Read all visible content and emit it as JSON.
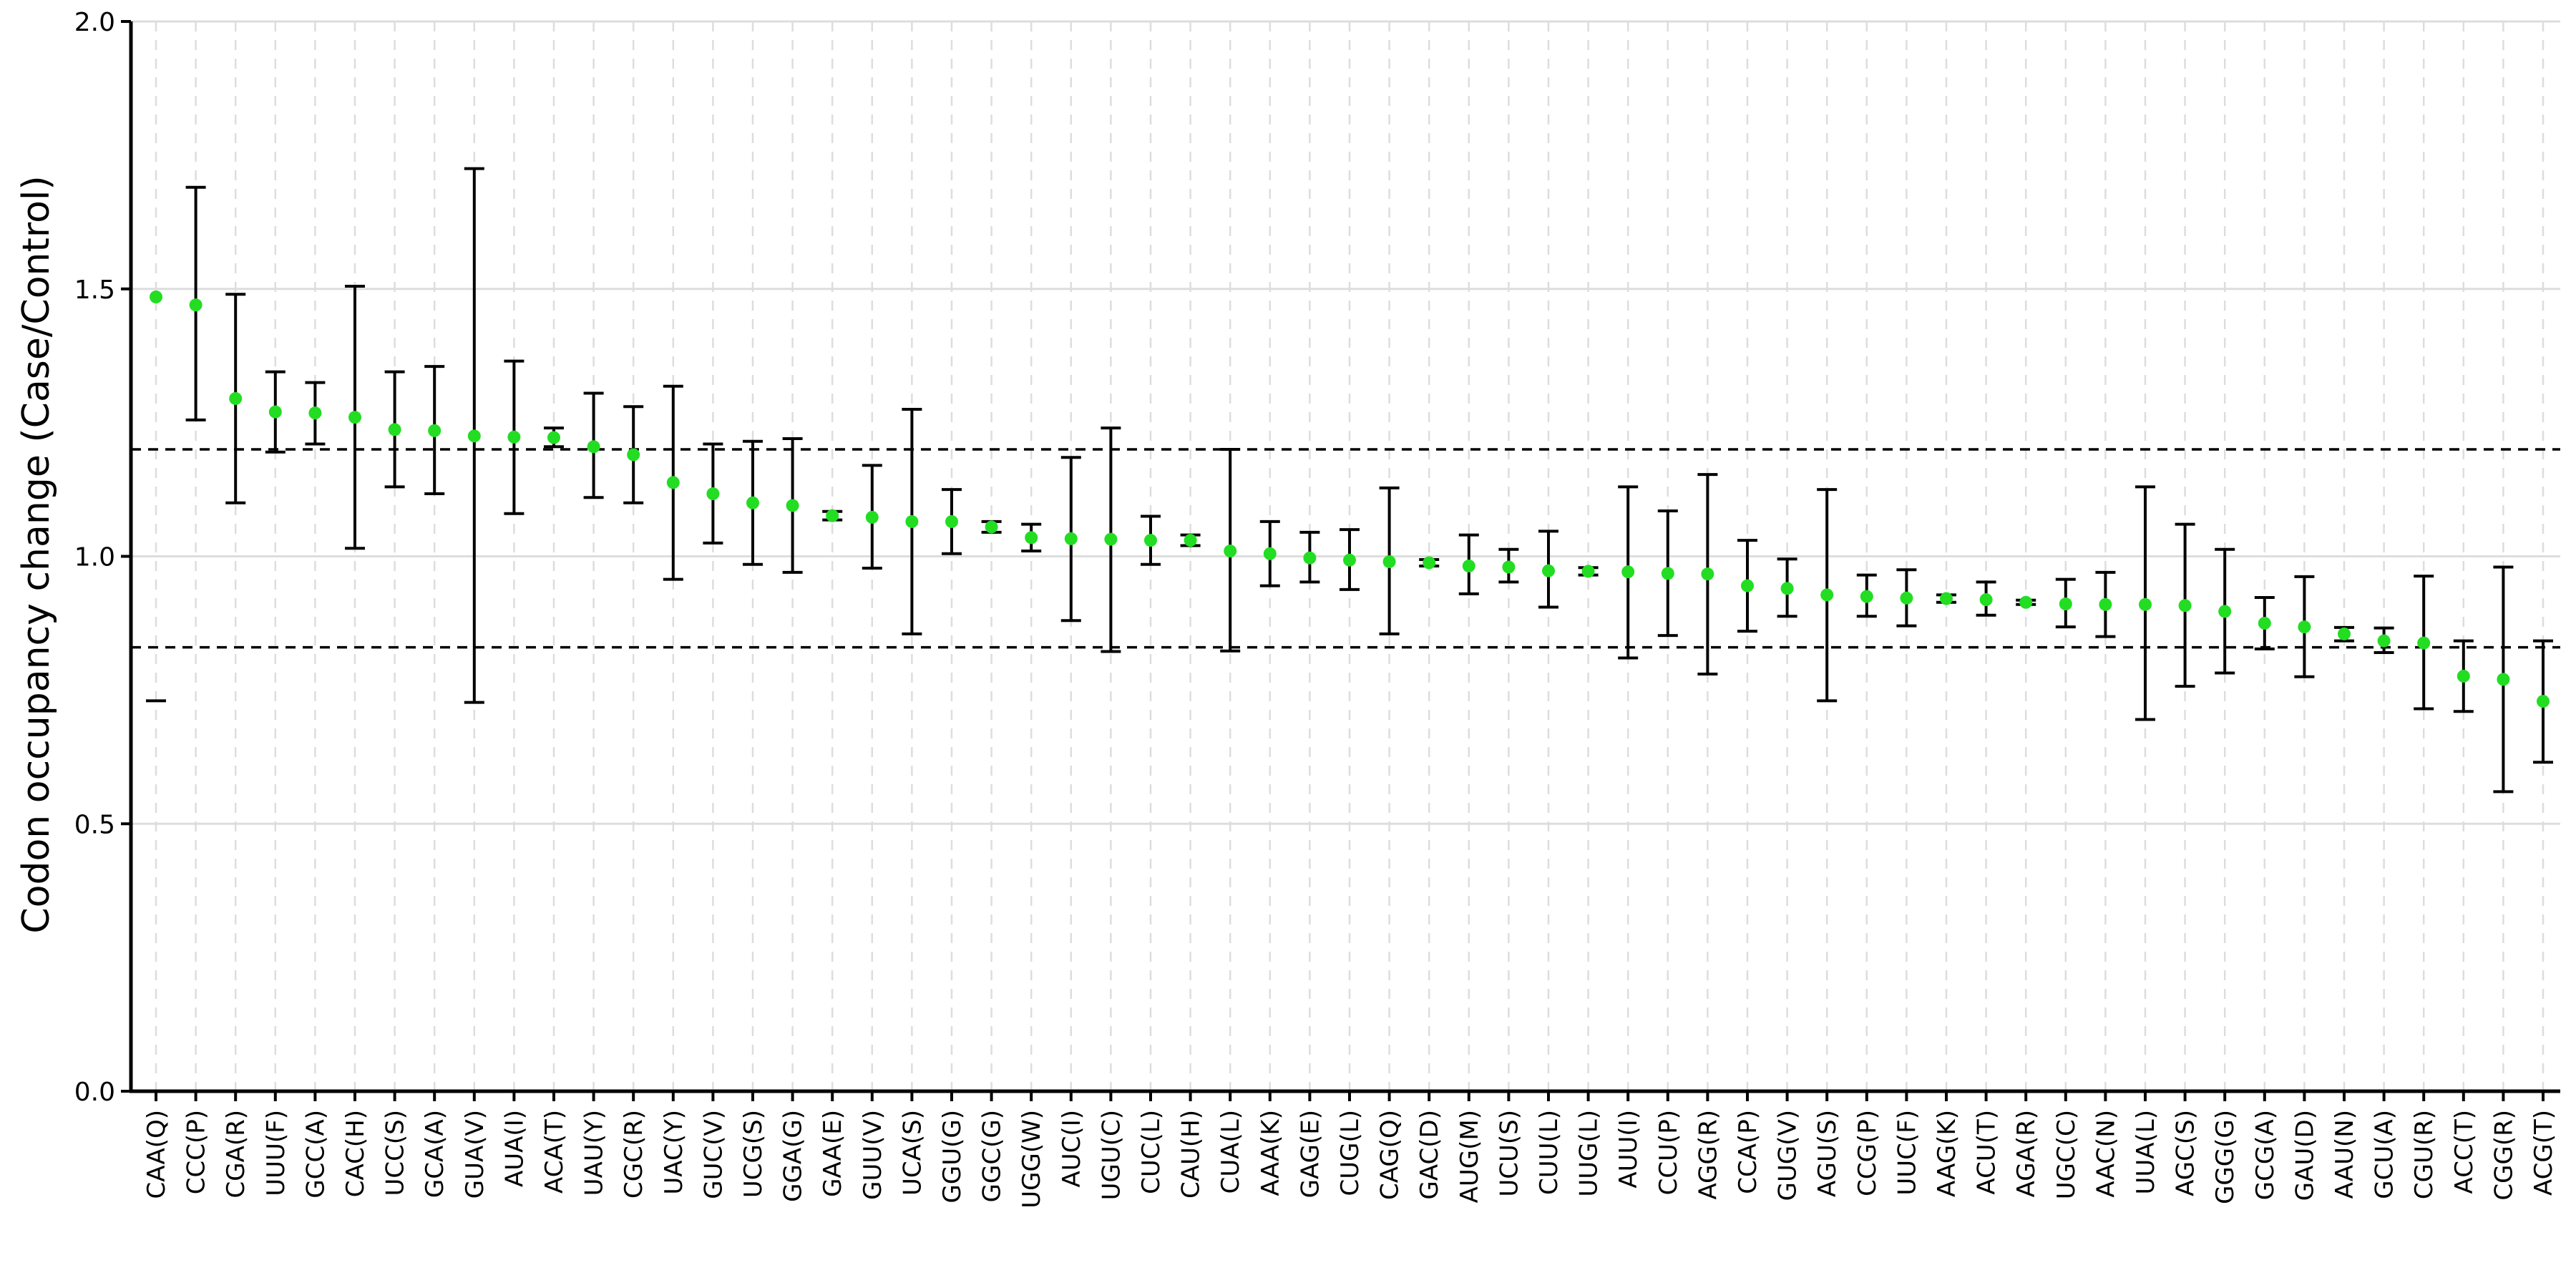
{
  "chart_data": {
    "type": "scatter",
    "title": "",
    "xlabel": "",
    "ylabel": "Codon occupancy change (Case/Control)",
    "ylim": [
      0.0,
      2.0
    ],
    "yticks": [
      "0.0",
      "0.5",
      "1.0",
      "1.5",
      "2.0"
    ],
    "grid": true,
    "legend": "none",
    "threshold_lines": [
      1.2,
      0.83
    ],
    "colors": {
      "point": "#22dd22",
      "errorbar": "#000000",
      "grid": "#dddddd",
      "threshold": "#000000"
    },
    "categories": [
      "CAA(Q)",
      "CCC(P)",
      "CGA(R)",
      "UUU(F)",
      "GCC(A)",
      "CAC(H)",
      "UCC(S)",
      "GCA(A)",
      "GUA(V)",
      "AUA(I)",
      "ACA(T)",
      "UAU(Y)",
      "CGC(R)",
      "UAC(Y)",
      "GUC(V)",
      "UCG(S)",
      "GGA(G)",
      "GAA(E)",
      "GUU(V)",
      "UCA(S)",
      "GGU(G)",
      "GGC(G)",
      "UGG(W)",
      "AUC(I)",
      "UGU(C)",
      "CUC(L)",
      "CAU(H)",
      "CUA(L)",
      "AAA(K)",
      "GAG(E)",
      "CUG(L)",
      "CAG(Q)",
      "GAC(D)",
      "AUG(M)",
      "UCU(S)",
      "CUU(L)",
      "UUG(L)",
      "AUU(I)",
      "CCU(P)",
      "AGG(R)",
      "CCA(P)",
      "GUG(V)",
      "AGU(S)",
      "CCG(P)",
      "UUC(F)",
      "AAG(K)",
      "ACU(T)",
      "AGA(R)",
      "UGC(C)",
      "AAC(N)",
      "UUA(L)",
      "AGC(S)",
      "GGG(G)",
      "GCG(A)",
      "GAU(D)",
      "AAU(N)",
      "GCU(A)",
      "CGU(R)",
      "ACC(T)",
      "CGG(R)",
      "ACG(T)"
    ],
    "values": [
      1.485,
      1.47,
      1.295,
      1.27,
      1.268,
      1.26,
      1.237,
      1.235,
      1.225,
      1.223,
      1.222,
      1.205,
      1.19,
      1.138,
      1.117,
      1.1,
      1.095,
      1.076,
      1.073,
      1.065,
      1.065,
      1.055,
      1.035,
      1.033,
      1.032,
      1.03,
      1.03,
      1.01,
      1.005,
      0.997,
      0.993,
      0.99,
      0.988,
      0.982,
      0.98,
      0.973,
      0.972,
      0.971,
      0.968,
      0.967,
      0.945,
      0.94,
      0.928,
      0.925,
      0.922,
      0.921,
      0.919,
      0.914,
      0.911,
      0.91,
      0.91,
      0.908,
      0.897,
      0.875,
      0.868,
      0.855,
      0.842,
      0.838,
      0.776,
      0.77,
      0.729
    ],
    "errors_lower": [
      null,
      1.255,
      1.1,
      1.195,
      1.21,
      1.015,
      1.13,
      1.117,
      0.727,
      1.08,
      1.205,
      1.11,
      1.1,
      0.957,
      1.025,
      0.985,
      0.97,
      1.068,
      0.978,
      0.855,
      1.005,
      1.045,
      1.01,
      0.88,
      0.822,
      0.985,
      1.02,
      0.823,
      0.945,
      0.952,
      0.938,
      0.855,
      0.982,
      0.93,
      0.952,
      0.905,
      0.965,
      0.81,
      0.852,
      0.78,
      0.86,
      0.888,
      0.73,
      0.888,
      0.87,
      0.914,
      0.89,
      0.91,
      0.868,
      0.85,
      0.695,
      0.757,
      0.782,
      0.827,
      0.775,
      0.842,
      0.82,
      0.715,
      0.71,
      0.56,
      0.615
    ],
    "errors_upper": [
      null,
      1.69,
      1.49,
      1.345,
      1.325,
      1.505,
      1.345,
      1.355,
      1.725,
      1.365,
      1.24,
      1.305,
      1.28,
      1.318,
      1.21,
      1.215,
      1.22,
      1.084,
      1.17,
      1.275,
      1.125,
      1.065,
      1.06,
      1.185,
      1.24,
      1.075,
      1.04,
      1.2,
      1.065,
      1.045,
      1.05,
      1.128,
      0.994,
      1.04,
      1.013,
      1.047,
      0.979,
      1.13,
      1.085,
      1.153,
      1.03,
      0.995,
      1.125,
      0.965,
      0.975,
      0.928,
      0.952,
      0.918,
      0.957,
      0.97,
      1.13,
      1.06,
      1.013,
      0.923,
      0.962,
      0.867,
      0.866,
      0.963,
      0.842,
      0.98,
      0.842
    ],
    "outlier_marks": [
      {
        "category": "CAA(Q)",
        "value": 0.73
      }
    ]
  }
}
